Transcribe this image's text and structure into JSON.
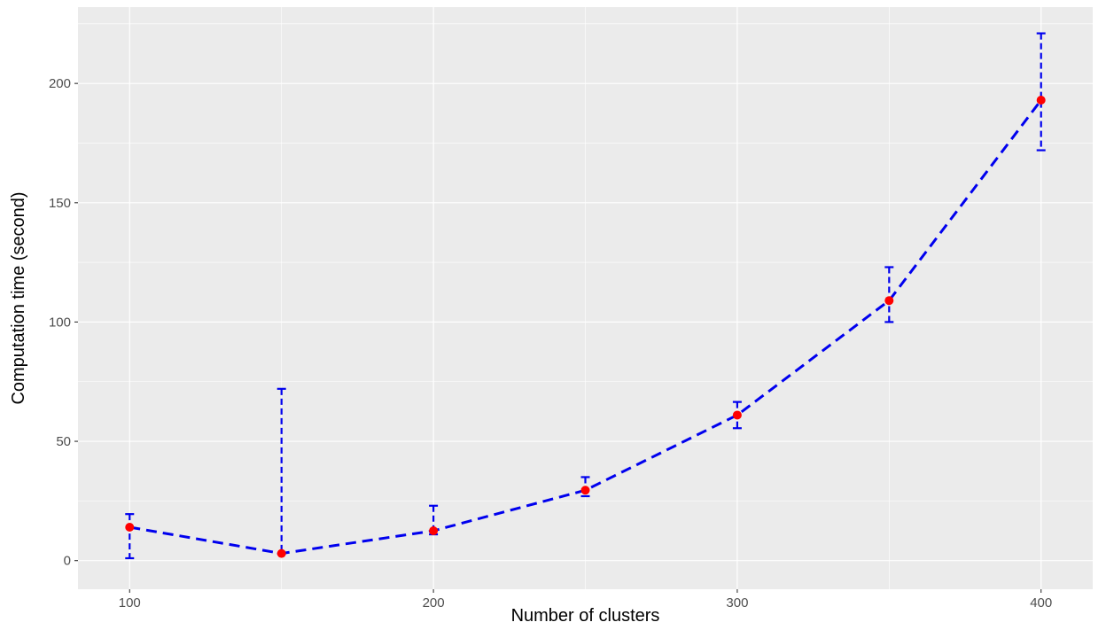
{
  "chart_data": {
    "type": "line",
    "title": "",
    "xlabel": "Number of clusters",
    "ylabel": "Computation time (second)",
    "x": [
      100,
      150,
      200,
      250,
      300,
      350,
      400
    ],
    "series": [
      {
        "values": [
          14,
          3,
          12.5,
          29.5,
          61,
          109,
          193
        ],
        "lower": [
          1,
          3,
          11,
          27,
          55.5,
          100,
          172
        ],
        "upper": [
          19.5,
          72,
          23,
          35,
          66.5,
          123,
          221
        ]
      }
    ],
    "xlim": [
      83,
      417
    ],
    "ylim": [
      -12,
      232
    ],
    "xticks": [
      100,
      200,
      300,
      400
    ],
    "xticks_minor": [
      150,
      250,
      350
    ],
    "xtick_labels": [
      "100",
      "200",
      "300",
      "400"
    ],
    "yticks": [
      0,
      50,
      100,
      150,
      200
    ],
    "yticks_minor": [
      25,
      75,
      125,
      175,
      225
    ],
    "ytick_labels": [
      "0",
      "50",
      "100",
      "150",
      "200"
    ],
    "grid": true,
    "legend": "none",
    "colors": {
      "panel": "#ebebeb",
      "grid": "#ffffff",
      "line": "#0000ee",
      "errorbar": "#0000ee",
      "point": "#ff0000"
    }
  }
}
